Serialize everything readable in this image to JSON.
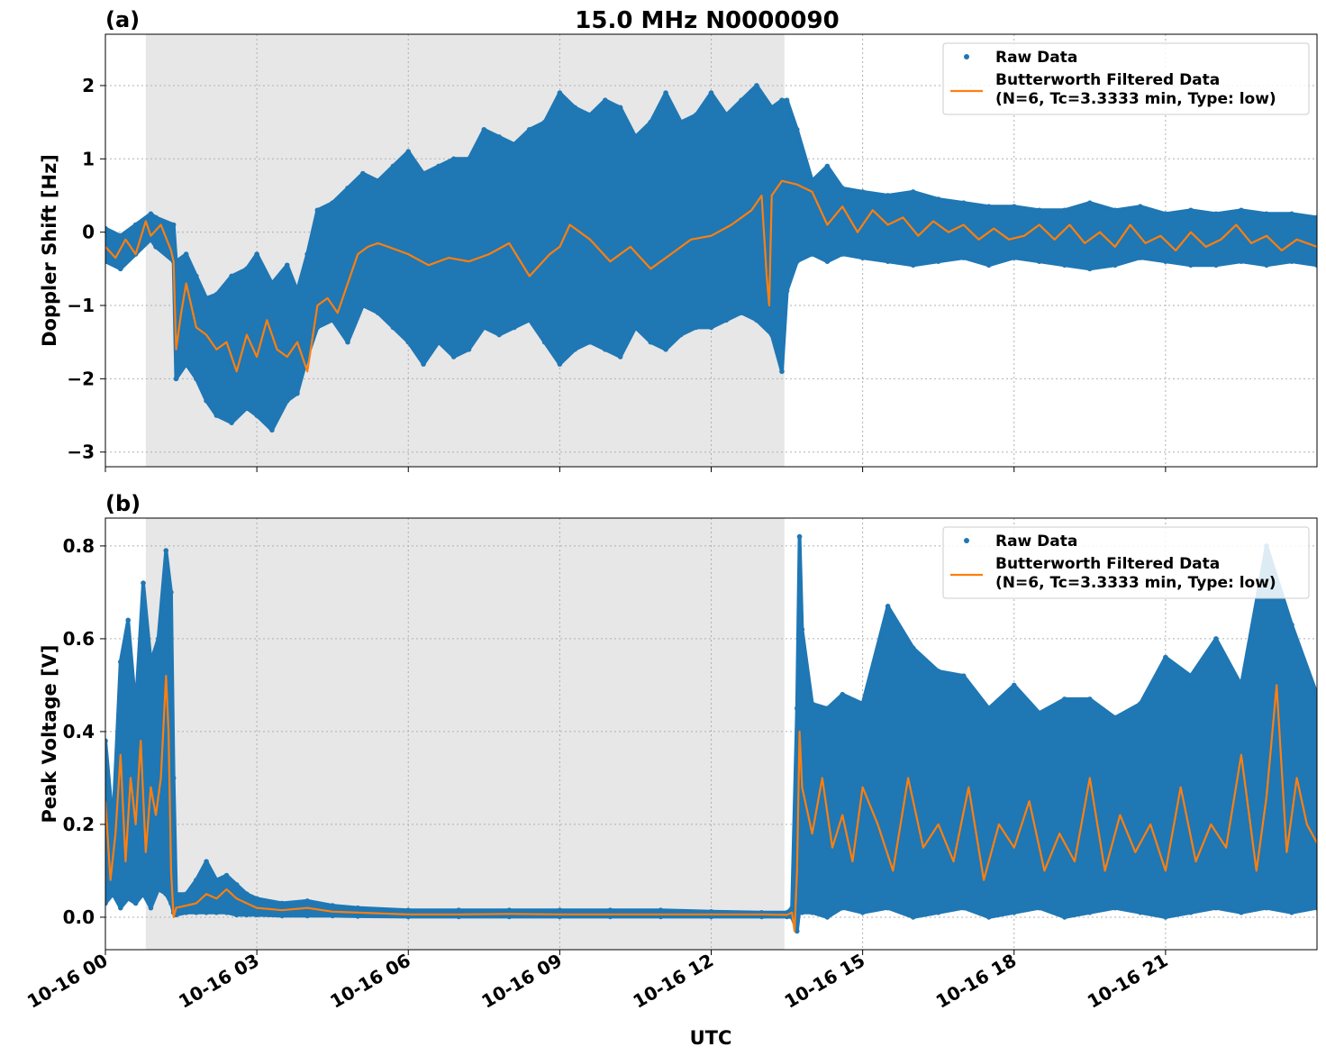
{
  "title": "15.0 MHz N0000090",
  "xlabel": "UTC",
  "legend": {
    "raw_label": "Raw Data",
    "filtered_label_line1": "Butterworth Filtered Data",
    "filtered_label_line2": "(N=6, Tc=3.3333 min, Type: low)"
  },
  "colors": {
    "raw": "#1f77b4",
    "filtered": "#ff7f0e",
    "shade": "#e7e7e7",
    "grid": "#b0b0b0"
  },
  "x_axis": {
    "range_hours": [
      0,
      24
    ],
    "ticks": [
      {
        "h": 0,
        "label": "10-16 00"
      },
      {
        "h": 3,
        "label": "10-16 03"
      },
      {
        "h": 6,
        "label": "10-16 06"
      },
      {
        "h": 9,
        "label": "10-16 09"
      },
      {
        "h": 12,
        "label": "10-16 12"
      },
      {
        "h": 15,
        "label": "10-16 15"
      },
      {
        "h": 18,
        "label": "10-16 18"
      },
      {
        "h": 21,
        "label": "10-16 21"
      }
    ]
  },
  "shaded_interval_hours": [
    0.8,
    13.45
  ],
  "chart_data": [
    {
      "type": "scatter+line",
      "panel_label": "(a)",
      "ylabel": "Doppler Shift [Hz]",
      "ylim": [
        -3.2,
        2.7
      ],
      "yticks": [
        {
          "v": -3,
          "label": "−3"
        },
        {
          "v": -2,
          "label": "−2"
        },
        {
          "v": -1,
          "label": "−1"
        },
        {
          "v": 0,
          "label": "0"
        },
        {
          "v": 1,
          "label": "1"
        },
        {
          "v": 2,
          "label": "2"
        }
      ],
      "series": [
        {
          "name": "Raw Data (envelope)",
          "x": [
            0,
            0.3,
            0.6,
            0.9,
            1.0,
            1.35,
            1.4,
            1.6,
            1.8,
            2.0,
            2.2,
            2.5,
            2.8,
            3.0,
            3.3,
            3.6,
            3.8,
            4.0,
            4.2,
            4.5,
            4.8,
            5.1,
            5.4,
            5.7,
            6.0,
            6.3,
            6.6,
            6.9,
            7.2,
            7.5,
            7.8,
            8.1,
            8.4,
            8.7,
            9.0,
            9.3,
            9.6,
            9.9,
            10.2,
            10.5,
            10.8,
            11.1,
            11.4,
            11.7,
            12.0,
            12.3,
            12.6,
            12.9,
            13.2,
            13.4,
            13.5,
            13.7,
            14.0,
            14.3,
            14.6,
            15.0,
            15.5,
            16.0,
            16.5,
            17.0,
            17.5,
            18.0,
            18.5,
            19.0,
            19.5,
            20.0,
            20.5,
            21.0,
            21.5,
            22.0,
            22.5,
            23.0,
            23.5,
            24.0
          ],
          "upper": [
            0.05,
            -0.05,
            0.1,
            0.25,
            0.2,
            0.1,
            -0.4,
            -0.3,
            -0.6,
            -0.9,
            -0.85,
            -0.6,
            -0.5,
            -0.3,
            -0.7,
            -0.45,
            -0.8,
            -0.3,
            0.3,
            0.4,
            0.6,
            0.8,
            0.7,
            0.9,
            1.1,
            0.8,
            0.9,
            1.0,
            1.0,
            1.4,
            1.3,
            1.2,
            1.4,
            1.5,
            1.9,
            1.7,
            1.6,
            1.8,
            1.7,
            1.3,
            1.5,
            1.9,
            1.5,
            1.6,
            1.9,
            1.6,
            1.8,
            2.0,
            1.7,
            1.8,
            1.8,
            1.4,
            0.7,
            0.9,
            0.6,
            0.55,
            0.5,
            0.55,
            0.45,
            0.4,
            0.35,
            0.35,
            0.3,
            0.3,
            0.4,
            0.3,
            0.35,
            0.25,
            0.3,
            0.25,
            0.3,
            0.25,
            0.25,
            0.2
          ],
          "lower": [
            -0.4,
            -0.5,
            -0.3,
            -0.1,
            -0.2,
            -0.4,
            -2.0,
            -1.8,
            -2.0,
            -2.3,
            -2.5,
            -2.6,
            -2.4,
            -2.5,
            -2.7,
            -2.3,
            -2.2,
            -1.7,
            -1.3,
            -1.2,
            -1.5,
            -1.0,
            -1.1,
            -1.3,
            -1.5,
            -1.8,
            -1.5,
            -1.7,
            -1.6,
            -1.3,
            -1.4,
            -1.3,
            -1.2,
            -1.5,
            -1.8,
            -1.6,
            -1.5,
            -1.6,
            -1.7,
            -1.3,
            -1.5,
            -1.6,
            -1.4,
            -1.3,
            -1.3,
            -1.2,
            -1.1,
            -1.2,
            -1.4,
            -1.9,
            -0.8,
            -0.4,
            -0.3,
            -0.4,
            -0.3,
            -0.35,
            -0.4,
            -0.45,
            -0.4,
            -0.35,
            -0.45,
            -0.35,
            -0.4,
            -0.45,
            -0.5,
            -0.45,
            -0.35,
            -0.4,
            -0.45,
            -0.45,
            -0.4,
            -0.45,
            -0.4,
            -0.45
          ]
        },
        {
          "name": "Butterworth Filtered Data",
          "x": [
            0,
            0.2,
            0.4,
            0.6,
            0.8,
            0.9,
            1.1,
            1.3,
            1.35,
            1.4,
            1.5,
            1.6,
            1.8,
            2.0,
            2.2,
            2.4,
            2.6,
            2.8,
            3.0,
            3.2,
            3.4,
            3.6,
            3.8,
            4.0,
            4.2,
            4.4,
            4.6,
            4.8,
            5.0,
            5.2,
            5.4,
            5.6,
            6.0,
            6.4,
            6.8,
            7.2,
            7.6,
            8.0,
            8.4,
            8.8,
            9.0,
            9.2,
            9.6,
            10.0,
            10.4,
            10.8,
            11.2,
            11.6,
            12.0,
            12.4,
            12.8,
            13.0,
            13.1,
            13.15,
            13.2,
            13.4,
            13.7,
            14.0,
            14.3,
            14.6,
            14.9,
            15.2,
            15.5,
            15.8,
            16.1,
            16.4,
            16.7,
            17.0,
            17.3,
            17.6,
            17.9,
            18.2,
            18.5,
            18.8,
            19.1,
            19.4,
            19.7,
            20.0,
            20.3,
            20.6,
            20.9,
            21.2,
            21.5,
            21.8,
            22.1,
            22.4,
            22.7,
            23.0,
            23.3,
            23.6,
            24.0
          ],
          "y": [
            -0.2,
            -0.35,
            -0.1,
            -0.3,
            0.15,
            -0.05,
            0.1,
            -0.25,
            -0.4,
            -1.6,
            -1.1,
            -0.7,
            -1.3,
            -1.4,
            -1.6,
            -1.5,
            -1.9,
            -1.4,
            -1.7,
            -1.2,
            -1.6,
            -1.7,
            -1.5,
            -1.9,
            -1.0,
            -0.9,
            -1.1,
            -0.7,
            -0.3,
            -0.2,
            -0.15,
            -0.2,
            -0.3,
            -0.45,
            -0.35,
            -0.4,
            -0.3,
            -0.15,
            -0.6,
            -0.3,
            -0.2,
            0.1,
            -0.1,
            -0.4,
            -0.2,
            -0.5,
            -0.3,
            -0.1,
            -0.05,
            0.1,
            0.3,
            0.5,
            -0.6,
            -1.0,
            0.5,
            0.7,
            0.65,
            0.55,
            0.1,
            0.35,
            0.0,
            0.3,
            0.1,
            0.2,
            -0.05,
            0.15,
            0.0,
            0.1,
            -0.1,
            0.05,
            -0.1,
            -0.05,
            0.1,
            -0.1,
            0.1,
            -0.15,
            0.0,
            -0.2,
            0.1,
            -0.15,
            -0.05,
            -0.25,
            0.0,
            -0.2,
            -0.1,
            0.1,
            -0.15,
            -0.05,
            -0.25,
            -0.1,
            -0.2
          ]
        }
      ]
    },
    {
      "type": "scatter+line",
      "panel_label": "(b)",
      "ylabel": "Peak Voltage [V]",
      "ylim": [
        -0.07,
        0.86
      ],
      "yticks": [
        {
          "v": 0.0,
          "label": "0.0"
        },
        {
          "v": 0.2,
          "label": "0.2"
        },
        {
          "v": 0.4,
          "label": "0.4"
        },
        {
          "v": 0.6,
          "label": "0.6"
        },
        {
          "v": 0.8,
          "label": "0.8"
        }
      ],
      "series": [
        {
          "name": "Raw Data (envelope)",
          "x": [
            0,
            0.15,
            0.3,
            0.45,
            0.6,
            0.75,
            0.9,
            1.05,
            1.2,
            1.3,
            1.35,
            1.4,
            1.6,
            1.8,
            2.0,
            2.2,
            2.4,
            2.6,
            2.8,
            3.0,
            3.5,
            4.0,
            4.5,
            5.0,
            6.0,
            7.0,
            8.0,
            9.0,
            10.0,
            11.0,
            12.0,
            13.0,
            13.5,
            13.6,
            13.7,
            13.75,
            13.8,
            14.0,
            14.3,
            14.6,
            15.0,
            15.5,
            16.0,
            16.5,
            17.0,
            17.5,
            18.0,
            18.5,
            19.0,
            19.5,
            20.0,
            20.5,
            21.0,
            21.5,
            22.0,
            22.5,
            23.0,
            23.5,
            24.0
          ],
          "upper": [
            0.38,
            0.2,
            0.55,
            0.64,
            0.45,
            0.72,
            0.55,
            0.6,
            0.79,
            0.7,
            0.3,
            0.05,
            0.05,
            0.08,
            0.12,
            0.08,
            0.09,
            0.07,
            0.05,
            0.04,
            0.03,
            0.035,
            0.025,
            0.02,
            0.015,
            0.015,
            0.015,
            0.015,
            0.015,
            0.015,
            0.012,
            0.01,
            0.01,
            0.02,
            0.45,
            0.82,
            0.62,
            0.46,
            0.45,
            0.48,
            0.46,
            0.67,
            0.58,
            0.53,
            0.52,
            0.45,
            0.5,
            0.44,
            0.47,
            0.47,
            0.43,
            0.46,
            0.56,
            0.52,
            0.6,
            0.5,
            0.8,
            0.63,
            0.48
          ],
          "lower": [
            0.03,
            0.05,
            0.02,
            0.04,
            0.03,
            0.05,
            0.02,
            0.06,
            0.05,
            0.03,
            0.01,
            0.005,
            0.01,
            0.01,
            0.01,
            0.01,
            0.01,
            0.005,
            0.005,
            0.005,
            0.003,
            0.003,
            0.003,
            0.002,
            0.001,
            0.001,
            0.001,
            0.001,
            0.001,
            0.001,
            0.001,
            0.001,
            0.001,
            0.0,
            -0.03,
            0.02,
            0.01,
            0.01,
            0.0,
            0.02,
            0.01,
            0.02,
            0.0,
            0.01,
            0.02,
            0.0,
            0.01,
            0.02,
            0.0,
            0.01,
            0.02,
            0.01,
            0.0,
            0.01,
            0.02,
            0.01,
            0.02,
            0.01,
            0.02
          ]
        },
        {
          "name": "Butterworth Filtered Data",
          "x": [
            0,
            0.1,
            0.2,
            0.3,
            0.4,
            0.5,
            0.6,
            0.7,
            0.8,
            0.9,
            1.0,
            1.1,
            1.2,
            1.25,
            1.3,
            1.35,
            1.4,
            1.6,
            1.8,
            2.0,
            2.2,
            2.4,
            2.6,
            2.8,
            3.0,
            3.5,
            4.0,
            4.5,
            5.0,
            6.0,
            7.0,
            8.0,
            9.0,
            10.0,
            11.0,
            12.0,
            13.0,
            13.5,
            13.6,
            13.65,
            13.7,
            13.75,
            13.8,
            14.0,
            14.2,
            14.4,
            14.6,
            14.8,
            15.0,
            15.3,
            15.6,
            15.9,
            16.2,
            16.5,
            16.8,
            17.1,
            17.4,
            17.7,
            18.0,
            18.3,
            18.6,
            18.9,
            19.2,
            19.5,
            19.8,
            20.1,
            20.4,
            20.7,
            21.0,
            21.3,
            21.6,
            21.9,
            22.2,
            22.5,
            22.8,
            23.0,
            23.2,
            23.4,
            23.6,
            23.8,
            24.0
          ],
          "y": [
            0.25,
            0.08,
            0.18,
            0.35,
            0.12,
            0.3,
            0.2,
            0.38,
            0.14,
            0.28,
            0.22,
            0.3,
            0.52,
            0.4,
            0.1,
            0.0,
            0.02,
            0.025,
            0.03,
            0.05,
            0.04,
            0.06,
            0.04,
            0.03,
            0.02,
            0.015,
            0.02,
            0.012,
            0.01,
            0.006,
            0.006,
            0.007,
            0.006,
            0.006,
            0.006,
            0.006,
            0.006,
            0.005,
            0.01,
            -0.03,
            0.1,
            0.4,
            0.28,
            0.18,
            0.3,
            0.15,
            0.22,
            0.12,
            0.28,
            0.2,
            0.1,
            0.3,
            0.15,
            0.2,
            0.12,
            0.28,
            0.08,
            0.2,
            0.15,
            0.25,
            0.1,
            0.18,
            0.12,
            0.3,
            0.1,
            0.22,
            0.14,
            0.2,
            0.1,
            0.28,
            0.12,
            0.2,
            0.15,
            0.35,
            0.1,
            0.26,
            0.5,
            0.14,
            0.3,
            0.2,
            0.16
          ]
        }
      ]
    }
  ]
}
